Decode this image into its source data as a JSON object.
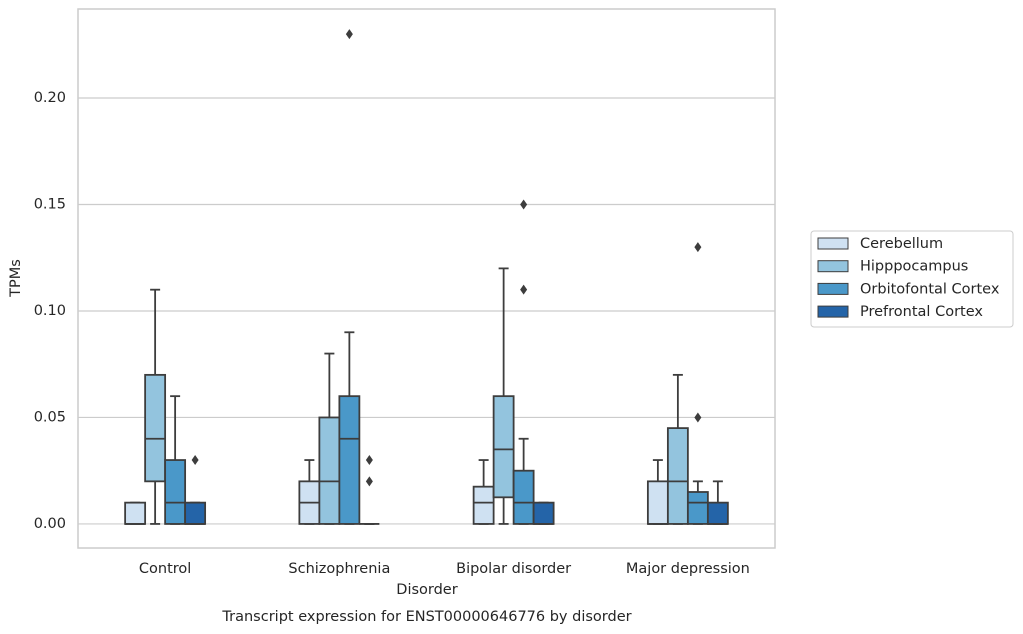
{
  "chart_data": {
    "type": "box",
    "title": "Transcript expression for ENST00000646776 by disorder",
    "x_label": "Disorder",
    "y_label": "TPMs",
    "categories": [
      "Control",
      "Schizophrenia",
      "Bipolar disorder",
      "Major depression"
    ],
    "ylim": [
      -0.0113,
      0.2418
    ],
    "yticks": [
      {
        "value": 0,
        "label": "0.00"
      },
      0.05,
      {
        "value": 0.1,
        "label": "0.10"
      },
      0.15,
      {
        "value": 0.2,
        "label": "0.20"
      }
    ],
    "grid": true,
    "legend": "right",
    "series": [
      {
        "name": "Cerebellum",
        "color": "#cfe1f2",
        "boxes": [
          {
            "low": 0,
            "q1": 0,
            "median": 0,
            "q3": 0.01,
            "high": 0.01,
            "outliers": []
          },
          {
            "low": 0,
            "q1": 0,
            "median": 0.01,
            "q3": 0.02,
            "high": 0.03,
            "outliers": []
          },
          {
            "low": 0,
            "q1": 0,
            "median": 0.01,
            "q3": 0.0175,
            "high": 0.03,
            "outliers": []
          },
          {
            "low": 0,
            "q1": 0,
            "median": 0,
            "q3": 0.02,
            "high": 0.03,
            "outliers": []
          }
        ]
      },
      {
        "name": "Hipppocampus",
        "color": "#93c4de",
        "boxes": [
          {
            "low": 0,
            "q1": 0.02,
            "median": 0.04,
            "q3": 0.07,
            "high": 0.11,
            "outliers": []
          },
          {
            "low": 0,
            "q1": 0,
            "median": 0.02,
            "q3": 0.05,
            "high": 0.08,
            "outliers": []
          },
          {
            "low": 0,
            "q1": 0.0125,
            "median": 0.035,
            "q3": 0.06,
            "high": 0.12,
            "outliers": []
          },
          {
            "low": 0,
            "q1": 0,
            "median": 0.02,
            "q3": 0.045,
            "high": 0.07,
            "outliers": []
          }
        ]
      },
      {
        "name": "Orbitofontal Cortex",
        "color": "#4a98c9",
        "boxes": [
          {
            "low": 0,
            "q1": 0,
            "median": 0.01,
            "q3": 0.03,
            "high": 0.06,
            "outliers": []
          },
          {
            "low": 0,
            "q1": 0,
            "median": 0.04,
            "q3": 0.06,
            "high": 0.09,
            "outliers": [
              0.23
            ]
          },
          {
            "low": 0,
            "q1": 0,
            "median": 0.01,
            "q3": 0.025,
            "high": 0.04,
            "outliers": [
              0.15,
              0.11
            ]
          },
          {
            "low": 0,
            "q1": 0,
            "median": 0.01,
            "q3": 0.015,
            "high": 0.02,
            "outliers": [
              0.13,
              0.05
            ]
          }
        ]
      },
      {
        "name": "Prefrontal Cortex",
        "color": "#2464a8",
        "boxes": [
          {
            "low": 0,
            "q1": 0,
            "median": 0,
            "q3": 0.01,
            "high": 0.01,
            "outliers": [
              0.03
            ]
          },
          {
            "low": 0,
            "q1": 0,
            "median": 0,
            "q3": 0,
            "high": 0,
            "outliers": [
              0.03,
              0.02
            ]
          },
          {
            "low": 0,
            "q1": 0,
            "median": 0,
            "q3": 0.01,
            "high": 0.01,
            "outliers": []
          },
          {
            "low": 0,
            "q1": 0,
            "median": 0,
            "q3": 0.01,
            "high": 0.02,
            "outliers": []
          }
        ]
      }
    ]
  }
}
